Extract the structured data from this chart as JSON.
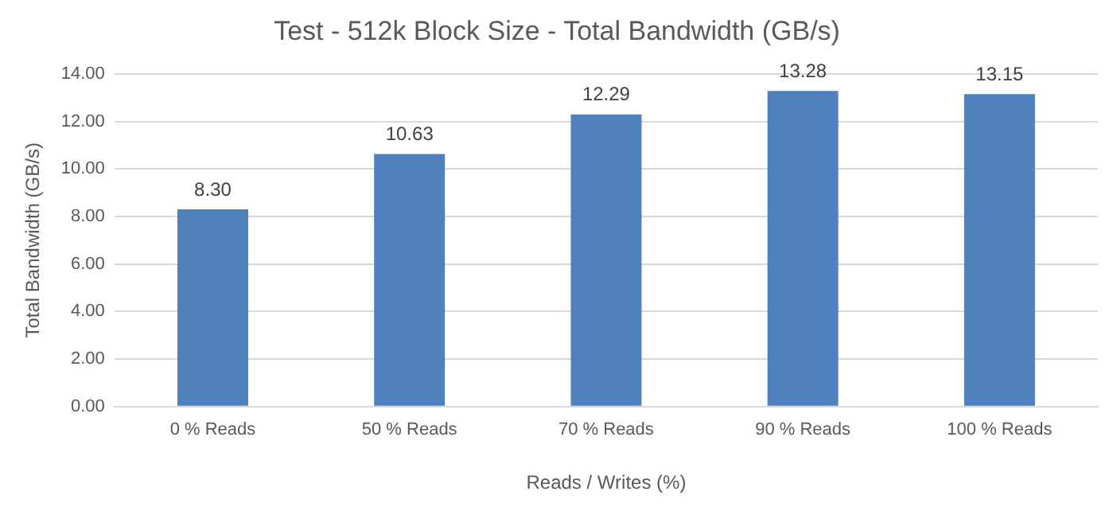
{
  "chart_data": {
    "type": "bar",
    "title": "Test - 512k Block Size - Total Bandwidth (GB/s)",
    "xlabel": "Reads / Writes (%)",
    "ylabel": "Total Bandwidth (GB/s)",
    "categories": [
      "0 % Reads",
      "50 % Reads",
      "70 % Reads",
      "90 % Reads",
      "100 % Reads"
    ],
    "values": [
      8.3,
      10.63,
      12.29,
      13.28,
      13.15
    ],
    "color": "#4f81bd",
    "ylim": [
      0,
      14
    ],
    "yticks": [
      {
        "value": 0,
        "label": "0.00"
      },
      {
        "value": 2,
        "label": "2.00"
      },
      {
        "value": 4,
        "label": "4.00"
      },
      {
        "value": 6,
        "label": "6.00"
      },
      {
        "value": 8,
        "label": "8.00"
      },
      {
        "value": 10,
        "label": "10.00"
      },
      {
        "value": 12,
        "label": "12.00"
      },
      {
        "value": 14,
        "label": "14.00"
      }
    ],
    "value_labels": [
      "8.30",
      "10.63",
      "12.29",
      "13.28",
      "13.15"
    ],
    "grid": "y"
  }
}
